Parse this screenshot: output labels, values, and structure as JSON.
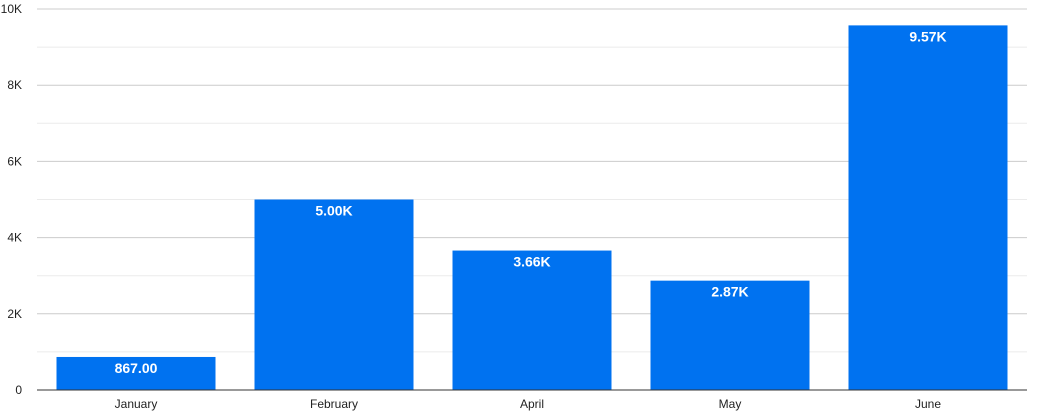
{
  "chart_data": {
    "type": "bar",
    "title": "",
    "xlabel": "",
    "ylabel": "",
    "categories": [
      "January",
      "February",
      "April",
      "May",
      "June"
    ],
    "values": [
      867,
      5000,
      3660,
      2870,
      9570
    ],
    "data_labels": [
      "867.00",
      "5.00K",
      "3.66K",
      "2.87K",
      "9.57K"
    ],
    "ylim": [
      0,
      10000
    ],
    "yticks": [
      0,
      2000,
      4000,
      6000,
      8000,
      10000
    ],
    "ytick_labels": [
      "0",
      "2K",
      "4K",
      "6K",
      "8K",
      "10K"
    ],
    "grid": true,
    "legend": "none",
    "colors": {
      "bar": "#0072f0",
      "major_grid": "#cccccc",
      "minor_grid": "#ebebeb",
      "axis": "#333333"
    }
  }
}
